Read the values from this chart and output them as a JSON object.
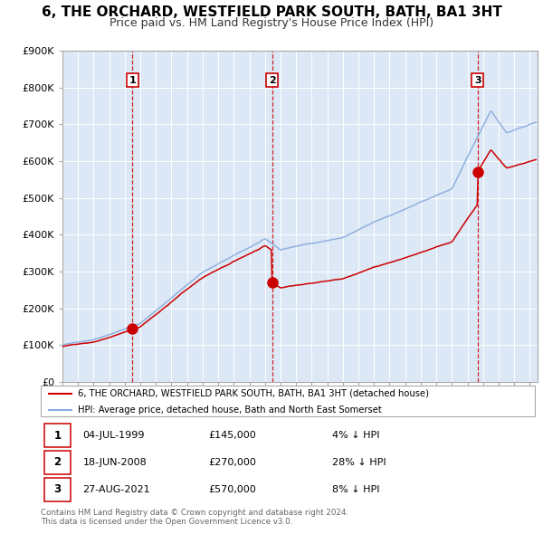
{
  "title": "6, THE ORCHARD, WESTFIELD PARK SOUTH, BATH, BA1 3HT",
  "subtitle": "Price paid vs. HM Land Registry's House Price Index (HPI)",
  "xlim": [
    1995,
    2025.5
  ],
  "ylim": [
    0,
    900000
  ],
  "yticks": [
    0,
    100000,
    200000,
    300000,
    400000,
    500000,
    600000,
    700000,
    800000,
    900000
  ],
  "ytick_labels": [
    "£0",
    "£100K",
    "£200K",
    "£300K",
    "£400K",
    "£500K",
    "£600K",
    "£700K",
    "£800K",
    "£900K"
  ],
  "purchases": [
    {
      "year": 1999.5,
      "price": 145000,
      "label": "1"
    },
    {
      "year": 2008.46,
      "price": 270000,
      "label": "2"
    },
    {
      "year": 2021.65,
      "price": 570000,
      "label": "3"
    }
  ],
  "vlines": [
    1999.5,
    2008.46,
    2021.65
  ],
  "vline_color": "#cc0000",
  "purchase_color": "#cc0000",
  "hpi_color": "#88aadd",
  "plot_bg_color": "#dce8f5",
  "table_entries": [
    {
      "num": "1",
      "date": "04-JUL-1999",
      "price": "£145,000",
      "hpi": "4% ↓ HPI"
    },
    {
      "num": "2",
      "date": "18-JUN-2008",
      "price": "£270,000",
      "hpi": "28% ↓ HPI"
    },
    {
      "num": "3",
      "date": "27-AUG-2021",
      "price": "£570,000",
      "hpi": "8% ↓ HPI"
    }
  ],
  "legend_line1": "6, THE ORCHARD, WESTFIELD PARK SOUTH, BATH, BA1 3HT (detached house)",
  "legend_line2": "HPI: Average price, detached house, Bath and North East Somerset",
  "footer1": "Contains HM Land Registry data © Crown copyright and database right 2024.",
  "footer2": "This data is licensed under the Open Government Licence v3.0.",
  "bg_color": "#ffffff",
  "grid_color": "#ffffff",
  "title_fontsize": 11,
  "subtitle_fontsize": 9
}
